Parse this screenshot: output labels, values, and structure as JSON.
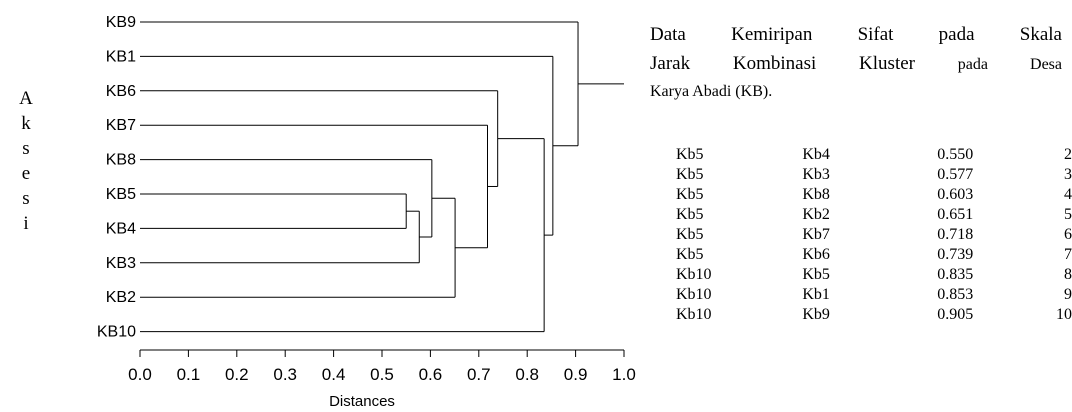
{
  "chart_data": {
    "type": "dendrogram",
    "xlabel": "Distances",
    "ylabel": "Aksesi",
    "xlim": [
      0.0,
      1.0
    ],
    "xticks": [
      "0.0",
      "0.1",
      "0.2",
      "0.3",
      "0.4",
      "0.5",
      "0.6",
      "0.7",
      "0.8",
      "0.9",
      "1.0"
    ],
    "leaves": [
      "KB9",
      "KB1",
      "KB6",
      "KB7",
      "KB8",
      "KB5",
      "KB4",
      "KB3",
      "KB2",
      "KB10"
    ],
    "merges": [
      {
        "id": "m1",
        "left": "KB5",
        "right": "KB4",
        "distance": 0.55
      },
      {
        "id": "m2",
        "left": "m1",
        "right": "KB3",
        "distance": 0.577
      },
      {
        "id": "m3",
        "left": "KB8",
        "right": "m2",
        "distance": 0.603
      },
      {
        "id": "m4",
        "left": "m3",
        "right": "KB2",
        "distance": 0.651
      },
      {
        "id": "m5",
        "left": "KB7",
        "right": "m4",
        "distance": 0.718
      },
      {
        "id": "m6",
        "left": "KB6",
        "right": "m5",
        "distance": 0.739
      },
      {
        "id": "m7",
        "left": "m6",
        "right": "KB10",
        "distance": 0.835
      },
      {
        "id": "m8",
        "left": "KB1",
        "right": "m7",
        "distance": 0.853
      },
      {
        "id": "m9",
        "left": "KB9",
        "right": "m8",
        "distance": 0.905
      }
    ],
    "root_extends_to": 1.0
  },
  "ylabel_letters": [
    "A",
    "k",
    "s",
    "e",
    "s",
    "i"
  ],
  "caption": {
    "line1": "Data Kemiripan Sifat pada Skala",
    "line2_main": "Jarak Kombinasi Kluster",
    "line2_small": "pada Desa",
    "line3": "Karya Abadi (KB)."
  },
  "table": [
    [
      "Kb5",
      "Kb4",
      "0.550",
      "2"
    ],
    [
      "Kb5",
      "Kb3",
      "0.577",
      "3"
    ],
    [
      "Kb5",
      "Kb8",
      "0.603",
      "4"
    ],
    [
      "Kb5",
      "Kb2",
      "0.651",
      "5"
    ],
    [
      "Kb5",
      "Kb7",
      "0.718",
      "6"
    ],
    [
      "Kb5",
      "Kb6",
      "0.739",
      "7"
    ],
    [
      "Kb10",
      "Kb5",
      "0.835",
      "8"
    ],
    [
      "Kb10",
      "Kb1",
      "0.853",
      "9"
    ],
    [
      "Kb10",
      "Kb9",
      "0.905",
      "10"
    ]
  ]
}
